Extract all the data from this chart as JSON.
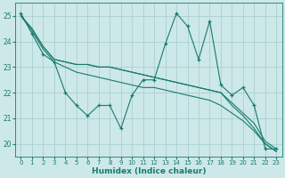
{
  "x": [
    0,
    1,
    2,
    3,
    4,
    5,
    6,
    7,
    8,
    9,
    10,
    11,
    12,
    13,
    14,
    15,
    16,
    17,
    18,
    19,
    20,
    21,
    22,
    23
  ],
  "line1": [
    25.1,
    24.3,
    23.5,
    23.2,
    22.0,
    21.5,
    21.1,
    21.5,
    21.5,
    20.6,
    21.9,
    22.5,
    22.5,
    23.9,
    25.1,
    24.6,
    23.3,
    24.8,
    22.3,
    21.9,
    22.2,
    21.5,
    19.8,
    19.8
  ],
  "line2": [
    25.0,
    24.5,
    23.8,
    23.3,
    23.2,
    23.1,
    23.1,
    23.0,
    23.0,
    22.9,
    22.8,
    22.7,
    22.6,
    22.5,
    22.4,
    22.3,
    22.2,
    22.1,
    22.0,
    21.6,
    21.2,
    20.8,
    20.1,
    19.8
  ],
  "line3": [
    25.0,
    24.5,
    23.8,
    23.3,
    23.2,
    23.1,
    23.1,
    23.0,
    23.0,
    22.9,
    22.8,
    22.7,
    22.6,
    22.5,
    22.4,
    22.3,
    22.2,
    22.1,
    22.0,
    21.5,
    21.1,
    20.6,
    20.0,
    19.7
  ],
  "line4": [
    25.0,
    24.4,
    23.7,
    23.2,
    23.0,
    22.8,
    22.7,
    22.6,
    22.5,
    22.4,
    22.3,
    22.2,
    22.2,
    22.1,
    22.0,
    21.9,
    21.8,
    21.7,
    21.5,
    21.2,
    20.9,
    20.5,
    20.0,
    19.7
  ],
  "line_color": "#1a7a6e",
  "bg_color": "#cde8e8",
  "grid_color": "#aacfcf",
  "xlabel": "Humidex (Indice chaleur)",
  "ylim": [
    19.5,
    25.5
  ],
  "xlim": [
    -0.5,
    23.5
  ],
  "yticks": [
    20,
    21,
    22,
    23,
    24,
    25
  ],
  "xticks": [
    0,
    1,
    2,
    3,
    4,
    5,
    6,
    7,
    8,
    9,
    10,
    11,
    12,
    13,
    14,
    15,
    16,
    17,
    18,
    19,
    20,
    21,
    22,
    23
  ]
}
